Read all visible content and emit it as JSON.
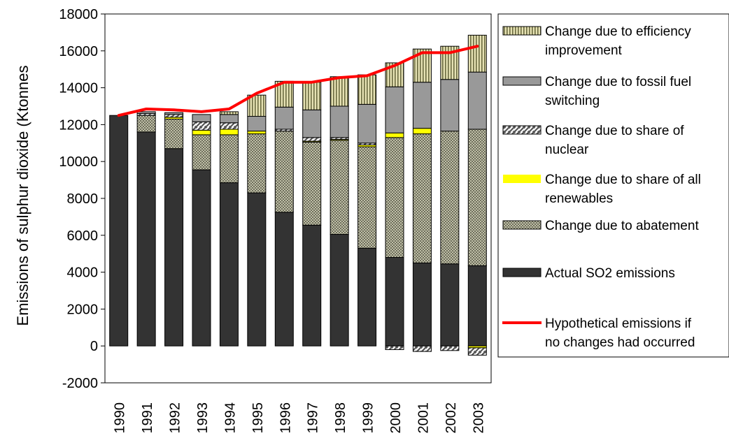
{
  "chart_data": {
    "type": "bar",
    "stacked": true,
    "title": "",
    "xlabel": "",
    "ylabel": "Emissions of sulphur dioxide (Ktonnes",
    "ylim": [
      -2000,
      18000
    ],
    "yticks": [
      18000,
      16000,
      14000,
      12000,
      10000,
      8000,
      6000,
      4000,
      2000,
      0,
      -2000
    ],
    "grid": false,
    "legend_position": "right",
    "categories": [
      "1990",
      "1991",
      "1992",
      "1993",
      "1994",
      "1995",
      "1996",
      "1997",
      "1998",
      "1999",
      "2000",
      "2001",
      "2002",
      "2003"
    ],
    "series": [
      {
        "name": "Change due to efficiency improvement",
        "key": "efficiency",
        "color": "#d8d4a4",
        "pattern": "vlines",
        "values": [
          0,
          0,
          0,
          0,
          150,
          1150,
          1400,
          1500,
          1600,
          1600,
          1300,
          1800,
          1800,
          2000
        ]
      },
      {
        "name": "Change due to fossil fuel switching",
        "key": "fossil",
        "color": "#999999",
        "pattern": "solid",
        "values": [
          0,
          100,
          100,
          400,
          450,
          800,
          1200,
          1500,
          1700,
          2100,
          2500,
          2500,
          2800,
          3100
        ]
      },
      {
        "name": "Change due to share of nuclear",
        "key": "nuclear",
        "color": "#ffffff",
        "pattern": "diag",
        "values": [
          0,
          100,
          150,
          450,
          350,
          0,
          100,
          200,
          100,
          100,
          -200,
          -300,
          -250,
          -400
        ]
      },
      {
        "name": "Change due to share of all renewables",
        "key": "renewables",
        "color": "#ffff00",
        "pattern": "solid",
        "values": [
          0,
          0,
          100,
          250,
          300,
          150,
          0,
          50,
          50,
          100,
          250,
          300,
          0,
          -100
        ]
      },
      {
        "name": "Change due to abatement",
        "key": "abatement",
        "color": "#a8a890",
        "pattern": "checker",
        "values": [
          0,
          900,
          1600,
          1900,
          2600,
          3200,
          4400,
          4500,
          5100,
          5500,
          6500,
          7000,
          7200,
          7400
        ]
      },
      {
        "name": "Actual SO2 emissions",
        "key": "actual",
        "color": "#333333",
        "pattern": "solid",
        "values": [
          12500,
          11600,
          10700,
          9550,
          8850,
          8300,
          7250,
          6550,
          6050,
          5300,
          4800,
          4500,
          4450,
          4350
        ]
      }
    ],
    "line_series": {
      "name": "Hypothetical emissions if no changes had occurred",
      "color": "#ff0000",
      "values": [
        12500,
        12850,
        12800,
        12700,
        12850,
        13700,
        14300,
        14300,
        14550,
        14650,
        15200,
        15900,
        15900,
        16250
      ]
    },
    "legend": [
      {
        "key": "efficiency",
        "lines": [
          "Change due to efficiency",
          "improvement"
        ]
      },
      {
        "key": "fossil",
        "lines": [
          "Change due to fossil fuel",
          "switching"
        ]
      },
      {
        "key": "nuclear",
        "lines": [
          "Change due to share of",
          "nuclear"
        ]
      },
      {
        "key": "renewables",
        "lines": [
          "Change due to share of all",
          "renewables"
        ]
      },
      {
        "key": "abatement",
        "lines": [
          "Change due to abatement"
        ]
      },
      {
        "key": "actual",
        "lines": [
          "Actual SO2 emissions"
        ]
      },
      {
        "key": "line",
        "lines": [
          "Hypothetical emissions if",
          "no changes had occurred"
        ]
      }
    ]
  }
}
